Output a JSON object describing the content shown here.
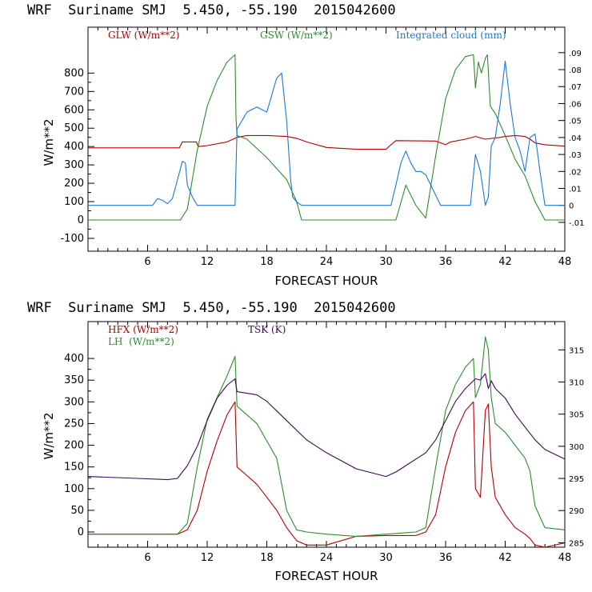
{
  "chart_data": [
    {
      "type": "line",
      "title": "WRF  Suriname SMJ  5.450, -55.190  2015042600",
      "xlabel": "FORECAST HOUR",
      "ylabel": "W/m**2",
      "xlim": [
        0,
        48
      ],
      "ylim": [
        -170,
        1050
      ],
      "xticks": [
        "6",
        "12",
        "18",
        "24",
        "30",
        "36",
        "42",
        "48"
      ],
      "yticks": [
        "800",
        "700",
        "600",
        "500",
        "400",
        "300",
        "200",
        "100",
        "0",
        "-100"
      ],
      "right_axis": {
        "ylim": [
          -0.027,
          0.105
        ],
        "ticks": [
          ".09",
          ".08",
          ".07",
          ".06",
          ".05",
          ".04",
          ".03",
          ".02",
          ".01",
          "0",
          "-.01"
        ]
      },
      "series": [
        {
          "name": "GLW (W/m**2)",
          "color": "#b00000",
          "axis": "left",
          "x": [
            0,
            9.2,
            9.5,
            10.9,
            11.1,
            12,
            14,
            15,
            16,
            18,
            20,
            21,
            22,
            24,
            27,
            30,
            30.5,
            31,
            35,
            36,
            36.5,
            38,
            39,
            40,
            41.5,
            42,
            43,
            44,
            44.5,
            45,
            46,
            48
          ],
          "y": [
            393,
            393,
            425,
            425,
            400,
            405,
            425,
            450,
            460,
            460,
            455,
            445,
            425,
            395,
            385,
            385,
            410,
            432,
            430,
            410,
            425,
            440,
            455,
            440,
            450,
            455,
            460,
            455,
            440,
            420,
            410,
            402
          ]
        },
        {
          "name": "GSW (W/m**2)",
          "color": "#2e8b2e",
          "axis": "left",
          "x": [
            0,
            9.3,
            10,
            11,
            12,
            13,
            14,
            14.8,
            14.9,
            15,
            16,
            18,
            20,
            21,
            21.5,
            31,
            32,
            33,
            34,
            35,
            36,
            37,
            38,
            38.8,
            39,
            39.3,
            39.6,
            40,
            40.2,
            40.5,
            41,
            42,
            43,
            44,
            45,
            46,
            48
          ],
          "y": [
            0,
            0,
            60,
            380,
            620,
            760,
            860,
            900,
            555,
            460,
            440,
            340,
            220,
            100,
            0,
            0,
            190,
            80,
            10,
            350,
            660,
            820,
            890,
            900,
            720,
            860,
            800,
            880,
            900,
            620,
            580,
            460,
            330,
            240,
            100,
            0,
            0
          ]
        },
        {
          "name": "Integrated cloud (mm)",
          "color": "#1a78d6",
          "axis": "right",
          "x": [
            0,
            6.5,
            7,
            7.5,
            8,
            8.5,
            9,
            9.5,
            9.8,
            10,
            10.5,
            11,
            14.8,
            15,
            16,
            17,
            18,
            18.5,
            19,
            19.5,
            20,
            20.4,
            20.6,
            21,
            21.5,
            30.5,
            31,
            31.5,
            32,
            32.5,
            33,
            33.5,
            34,
            35.5,
            38.5,
            38.8,
            39,
            39.5,
            40,
            40.3,
            40.6,
            41,
            41.5,
            42,
            42.5,
            43,
            43.5,
            44,
            44.5,
            45,
            45.5,
            46,
            48
          ],
          "y": [
            0,
            0,
            0.004,
            0.003,
            0.001,
            0.004,
            0.015,
            0.026,
            0.025,
            0.012,
            0.005,
            0,
            0,
            0.045,
            0.055,
            0.058,
            0.055,
            0.065,
            0.075,
            0.078,
            0.05,
            0.015,
            0.005,
            0.002,
            0,
            0,
            0.012,
            0.025,
            0.032,
            0.025,
            0.02,
            0.02,
            0.018,
            0,
            0,
            0.018,
            0.03,
            0.02,
            0,
            0.005,
            0.035,
            0.04,
            0.06,
            0.085,
            0.06,
            0.04,
            0.032,
            0.02,
            0.04,
            0.042,
            0.02,
            0,
            0
          ]
        }
      ]
    },
    {
      "type": "line",
      "title": "WRF  Suriname SMJ  5.450, -55.190  2015042600",
      "xlabel": "FORECAST HOUR",
      "ylabel": "W/m**2",
      "xlim": [
        0,
        48
      ],
      "ylim": [
        -35,
        485
      ],
      "xticks": [
        "6",
        "12",
        "18",
        "24",
        "30",
        "36",
        "42",
        "48"
      ],
      "yticks": [
        "400",
        "350",
        "300",
        "250",
        "200",
        "150",
        "100",
        "50",
        "0"
      ],
      "right_axis": {
        "ylim": [
          284.3,
          319.4
        ],
        "ticks": [
          "315",
          "310",
          "305",
          "300",
          "295",
          "290",
          "285"
        ]
      },
      "series": [
        {
          "name": "HFX (W/m**2)",
          "color": "#b00000",
          "axis": "left",
          "x": [
            0,
            9,
            10,
            11,
            12,
            13,
            14,
            14.8,
            15,
            16,
            17,
            18,
            19,
            20,
            21,
            22,
            24,
            27,
            30,
            33,
            34,
            35,
            36,
            37,
            38,
            38.8,
            39,
            39.5,
            40,
            40.3,
            40.6,
            41,
            42,
            43,
            44,
            44.5,
            45,
            46,
            48
          ],
          "y": [
            -5,
            -5,
            5,
            50,
            140,
            210,
            270,
            300,
            150,
            130,
            110,
            80,
            50,
            10,
            -20,
            -30,
            -30,
            -10,
            -8,
            -8,
            0,
            40,
            150,
            230,
            280,
            300,
            100,
            80,
            280,
            295,
            150,
            80,
            40,
            10,
            -5,
            -15,
            -30,
            -35,
            -25
          ]
        },
        {
          "name": "LH  (W/m**2)",
          "color": "#2e8b2e",
          "axis": "left",
          "x": [
            0,
            9,
            10,
            11,
            12,
            13,
            14,
            14.8,
            15,
            16,
            17,
            18,
            19,
            20,
            21,
            22,
            24,
            27,
            30,
            33,
            34,
            35,
            36,
            37,
            38,
            38.8,
            39,
            39.5,
            40,
            40.3,
            40.6,
            41,
            42,
            43,
            44,
            44.5,
            45,
            46,
            48
          ],
          "y": [
            -5,
            -5,
            20,
            150,
            260,
            310,
            360,
            405,
            290,
            270,
            250,
            210,
            170,
            50,
            5,
            0,
            -5,
            -10,
            -5,
            0,
            10,
            150,
            280,
            340,
            380,
            400,
            310,
            340,
            450,
            420,
            310,
            250,
            230,
            200,
            170,
            140,
            60,
            10,
            5
          ]
        },
        {
          "name": "TSK (K)",
          "color": "#3a0a50",
          "axis": "right",
          "x": [
            0,
            5,
            8,
            9,
            10,
            11,
            12,
            13,
            14,
            14.8,
            15,
            17,
            18,
            19,
            20,
            22,
            24,
            27,
            30,
            31,
            32,
            33,
            34,
            35,
            36,
            37,
            38,
            39,
            39.5,
            40,
            40.3,
            40.6,
            41,
            42,
            43,
            44,
            45,
            46,
            48
          ],
          "y": [
            295.3,
            295,
            294.8,
            295,
            297,
            300,
            304,
            307.5,
            309.5,
            310.5,
            308.5,
            308,
            307,
            305.5,
            304,
            301,
            299,
            296.5,
            295.3,
            296,
            297,
            298,
            299,
            301,
            304,
            307,
            309,
            310.5,
            310.3,
            311.3,
            309,
            310.2,
            309,
            307.5,
            305,
            303,
            301,
            299.5,
            298
          ]
        }
      ]
    }
  ]
}
